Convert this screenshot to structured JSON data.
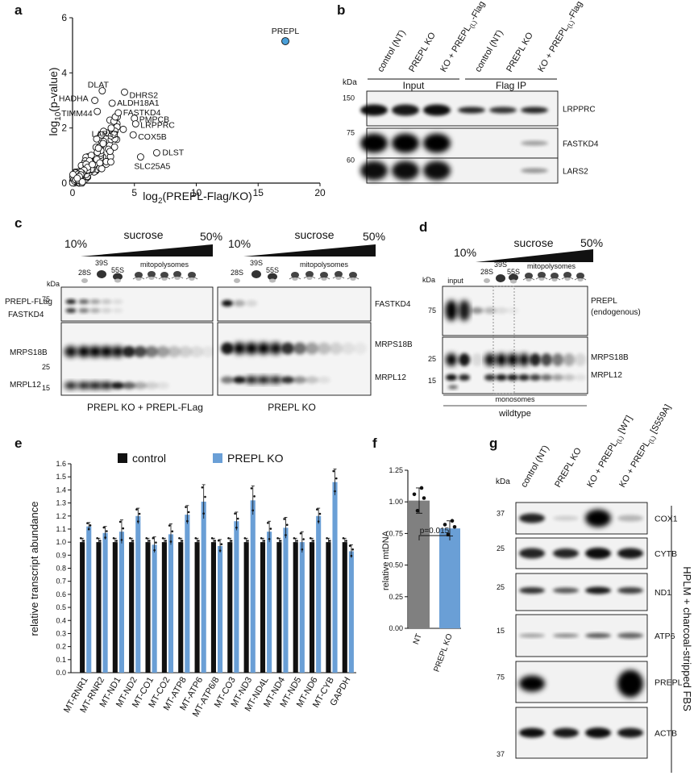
{
  "panels": {
    "a": {
      "label": "a",
      "xlabel_pre": "log",
      "xlabel_sub": "2",
      "xlabel_post": "(PREPL-Flag/KO)",
      "ylabel_pre": "log",
      "ylabel_sub": "10",
      "ylabel_post": "(p-value)",
      "chart_data": {
        "type": "scatter",
        "xlim": [
          0,
          20
        ],
        "ylim": [
          0,
          6
        ],
        "xticks": [
          0,
          5,
          10,
          15,
          20
        ],
        "yticks": [
          0,
          2,
          4,
          6
        ],
        "highlight": {
          "label": "PREPL",
          "x": 17.2,
          "y": 5.15,
          "color": "#4a9fd8"
        },
        "labeled_points": [
          {
            "label": "DLAT",
            "x": 2.4,
            "y": 3.35
          },
          {
            "label": "DHRS2",
            "x": 4.2,
            "y": 3.3
          },
          {
            "label": "HADHA",
            "x": 1.8,
            "y": 3.0
          },
          {
            "label": "ALDH18A1",
            "x": 3.2,
            "y": 2.9
          },
          {
            "label": "TIMM44",
            "x": 2.0,
            "y": 2.6
          },
          {
            "label": "FASTKD4",
            "x": 3.7,
            "y": 2.55
          },
          {
            "label": "PMPCB",
            "x": 5.0,
            "y": 2.35
          },
          {
            "label": "LRPPRC",
            "x": 5.1,
            "y": 2.15
          },
          {
            "label": "LARS2",
            "x": 4.1,
            "y": 1.95
          },
          {
            "label": "COX5B",
            "x": 4.9,
            "y": 1.75
          },
          {
            "label": "DLST",
            "x": 6.8,
            "y": 1.1
          },
          {
            "label": "SLC25A5",
            "x": 5.5,
            "y": 0.95
          }
        ]
      }
    },
    "b": {
      "label": "b",
      "lanes": [
        "control (NT)",
        "PREPL KO",
        "KO + PREPL",
        "control (NT)",
        "PREPL KO",
        "KO + PREPL"
      ],
      "lane_sub": "(L)",
      "lane_suffix": "-Flag",
      "group_input": "Input",
      "group_ip": "Flag IP",
      "kda": "kDa",
      "blots": [
        {
          "marker": "150",
          "protein": "LRPPRC"
        },
        {
          "marker": "75",
          "protein": "FASTKD4"
        },
        {
          "marker": "60",
          "protein": "LARS2"
        }
      ]
    },
    "c": {
      "label": "c",
      "sucrose": "sucrose",
      "pct_low": "10%",
      "pct_high": "50%",
      "s28": "28S",
      "s39": "39S",
      "s55": "55S",
      "mitopolysomes": "mitopolysomes",
      "kda": "kDa",
      "m75": "75",
      "m25": "25",
      "m15": "15",
      "prepl_flag": "PREPL-FLag",
      "fastkd4": "FASTKD4",
      "mrps18b": "MRPS18B",
      "mrpl12": "MRPL12",
      "caption_left": "PREPL KO + PREPL-FLag",
      "caption_right": "PREPL KO"
    },
    "d": {
      "label": "d",
      "sucrose": "sucrose",
      "pct_low": "10%",
      "pct_high": "50%",
      "input": "input",
      "s28": "28S",
      "s39": "39S",
      "s55": "55S",
      "mitopolysomes": "mitopolysomes",
      "kda": "kDa",
      "m75": "75",
      "m25": "25",
      "m15": "15",
      "prepl": "PREPL",
      "endogenous": "(endogenous)",
      "mrps18b": "MRPS18B",
      "mrpl12": "MRPL12",
      "monosomes": "monosomes",
      "wildtype": "wildtype"
    },
    "e": {
      "label": "e",
      "ylabel": "relative transcript abundance",
      "chart_data": {
        "type": "bar",
        "categories": [
          "MT-RNR1",
          "MT-RNR2",
          "MT-ND1",
          "MT-ND2",
          "MT-CO1",
          "MT-CO2",
          "MT-ATP8",
          "MT-ATP6",
          "MT-ATP6/8",
          "MT-CO3",
          "MT-ND3",
          "MT-ND4L",
          "MT-ND4",
          "MT-ND5",
          "MT-ND6",
          "MT-CYB",
          "GAPDH"
        ],
        "series": [
          {
            "name": "control",
            "color": "#111111",
            "values": [
              1,
              1,
              1,
              1,
              1,
              1,
              1,
              1,
              1,
              1,
              1,
              1,
              1,
              1,
              1,
              1,
              1
            ]
          },
          {
            "name": "PREPL KO",
            "color": "#6a9fd6",
            "values": [
              1.12,
              1.07,
              1.08,
              1.2,
              0.98,
              1.06,
              1.21,
              1.31,
              0.97,
              1.16,
              1.32,
              1.08,
              1.11,
              1.0,
              1.2,
              1.46,
              0.93
            ]
          }
        ],
        "errors": [
          0.03,
          0.05,
          0.09,
          0.06,
          0.06,
          0.08,
          0.07,
          0.13,
          0.05,
          0.07,
          0.11,
          0.08,
          0.08,
          0.08,
          0.06,
          0.1,
          0.05
        ],
        "ylim": [
          0,
          1.6
        ],
        "yticks": [
          0.0,
          0.1,
          0.2,
          0.3,
          0.4,
          0.5,
          0.6,
          0.7,
          0.8,
          0.9,
          1.0,
          1.1,
          1.2,
          1.3,
          1.4,
          1.5,
          1.6
        ]
      }
    },
    "f": {
      "label": "f",
      "ylabel": "relative mtDNA",
      "pvalue": "p=0.015",
      "chart_data": {
        "type": "bar",
        "categories": [
          "NT",
          "PREPL KO"
        ],
        "values": [
          1.01,
          0.79
        ],
        "errors": [
          0.1,
          0.06
        ],
        "colors": [
          "#808080",
          "#6a9fd6"
        ],
        "ylim": [
          0,
          1.25
        ],
        "yticks": [
          0.0,
          0.25,
          0.5,
          0.75,
          1.0,
          1.25
        ]
      }
    },
    "g": {
      "label": "g",
      "kda": "kDa",
      "lanes": [
        "control (NT)",
        "PREPL KO",
        "KO + PREPL",
        "KO + PREPL"
      ],
      "lane_sub": "(L)",
      "lane3_suffix": " [WT]",
      "lane4_suffix": " [S559A]",
      "side_label": "HPLM + charcoal-stripped FBS",
      "blots": [
        {
          "marker": "37",
          "protein": "COX1"
        },
        {
          "marker": "25",
          "protein": "CYTB"
        },
        {
          "marker": "25",
          "protein": "ND1"
        },
        {
          "marker": "15",
          "protein": "ATP6"
        },
        {
          "marker": "75",
          "protein": "PREPL"
        },
        {
          "marker": "37",
          "protein": "ACTB"
        }
      ]
    }
  }
}
